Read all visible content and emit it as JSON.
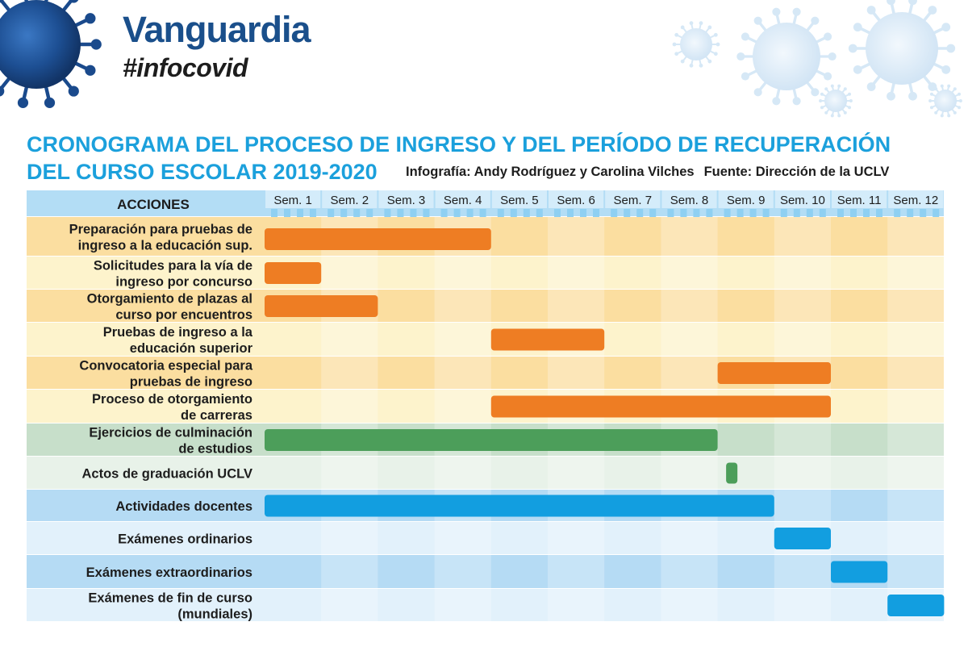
{
  "header": {
    "brand": "Vanguardia",
    "hashtag": "#infocovid"
  },
  "title": {
    "line1": "CRONOGRAMA DEL PROCESO DE INGRESO Y DEL PERÍODO DE RECUPERACIÓN",
    "line2": "DEL CURSO ESCOLAR 2019-2020"
  },
  "credits": {
    "author": "Infografía: Andy Rodríguez y Carolina Vilches",
    "source": "Fuente: Dirección de la UCLV"
  },
  "colors": {
    "orange_bar": "#ee7d23",
    "green_bar": "#4c9e5a",
    "blue_bar": "#129ee0",
    "header_band": "#b3ddf5",
    "week_band": "#8fd0f2",
    "title_blue": "#1ba0dc",
    "brand_blue": "#1a4f8b"
  },
  "chart_data": {
    "type": "gantt",
    "column_header": "ACCIONES",
    "weeks": [
      "Sem. 1",
      "Sem. 2",
      "Sem. 3",
      "Sem. 4",
      "Sem. 5",
      "Sem. 6",
      "Sem. 7",
      "Sem. 8",
      "Sem. 9",
      "Sem. 10",
      "Sem. 11",
      "Sem. 12"
    ],
    "tasks": [
      {
        "label": [
          "Preparación para pruebas de",
          "ingreso a la educación sup."
        ],
        "start": 0,
        "end": 4,
        "group": "orange"
      },
      {
        "label": [
          "Solicitudes para la vía de",
          "ingreso por concurso"
        ],
        "start": 0,
        "end": 1,
        "group": "orange"
      },
      {
        "label": [
          "Otorgamiento de plazas al",
          "curso por encuentros"
        ],
        "start": 0,
        "end": 2,
        "group": "orange"
      },
      {
        "label": [
          "Pruebas de ingreso a la",
          "educación superior"
        ],
        "start": 4,
        "end": 6,
        "group": "orange"
      },
      {
        "label": [
          "Convocatoria especial para",
          "pruebas de ingreso"
        ],
        "start": 8,
        "end": 10,
        "group": "orange"
      },
      {
        "label": [
          "Proceso de otorgamiento",
          "de carreras"
        ],
        "start": 4,
        "end": 10,
        "group": "orange"
      },
      {
        "label": [
          "Ejercicios de culminación",
          "de estudios"
        ],
        "start": 0,
        "end": 8,
        "group": "green"
      },
      {
        "label": [
          "Actos de graduación UCLV"
        ],
        "start": 8.15,
        "end": 8.35,
        "group": "green"
      },
      {
        "label": [
          "Actividades docentes"
        ],
        "start": 0,
        "end": 9,
        "group": "blue"
      },
      {
        "label": [
          "Exámenes ordinarios"
        ],
        "start": 9,
        "end": 10,
        "group": "blue"
      },
      {
        "label": [
          "Exámenes extraordinarios"
        ],
        "start": 10,
        "end": 11,
        "group": "blue"
      },
      {
        "label": [
          "Exámenes de fin de curso",
          "(mundiales)"
        ],
        "start": 11,
        "end": 12,
        "group": "blue"
      }
    ]
  }
}
